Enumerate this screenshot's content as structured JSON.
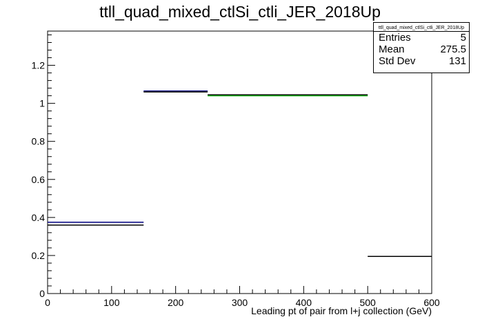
{
  "chart_data": {
    "type": "histogram",
    "title": "ttll_quad_mixed_ctlSi_ctli_JER_2018Up",
    "xlabel": "Leading pt of pair from l+j collection (GeV)",
    "ylabel": "",
    "xlim": [
      0,
      600
    ],
    "ylim": [
      0,
      1.38
    ],
    "x_ticks": [
      0,
      100,
      200,
      300,
      400,
      500,
      600
    ],
    "y_ticks": [
      0,
      0.2,
      0.4,
      0.6,
      0.8,
      1,
      1.2
    ],
    "x_tick_labels": [
      "0",
      "100",
      "200",
      "300",
      "400",
      "500",
      "600"
    ],
    "y_tick_labels": [
      "0",
      "0.2",
      "0.4",
      "0.6",
      "0.8",
      "1",
      "1.2"
    ],
    "grid": false,
    "legend": "none",
    "series": [
      {
        "color": "#000000",
        "bins": [
          {
            "x0": 0,
            "x1": 150,
            "y": 0.36
          },
          {
            "x0": 150,
            "x1": 250,
            "y": 1.06
          },
          {
            "x0": 250,
            "x1": 500,
            "y": 1.045
          },
          {
            "x0": 500,
            "x1": 600,
            "y": 0.195
          }
        ]
      },
      {
        "color": "#000080",
        "bins": [
          {
            "x0": 0,
            "x1": 150,
            "y": 0.375
          },
          {
            "x0": 150,
            "x1": 250,
            "y": 1.065
          }
        ]
      },
      {
        "color": "#00aa00",
        "bins": [
          {
            "x0": 250,
            "x1": 500,
            "y": 1.04
          }
        ]
      }
    ]
  },
  "statbox": {
    "title": "ttll_quad_mixed_ctlSi_ctli_JER_2018Up",
    "rows": [
      {
        "label": "Entries",
        "value": "5"
      },
      {
        "label": "Mean",
        "value": "275.5"
      },
      {
        "label": "Std Dev",
        "value": "131"
      }
    ]
  }
}
